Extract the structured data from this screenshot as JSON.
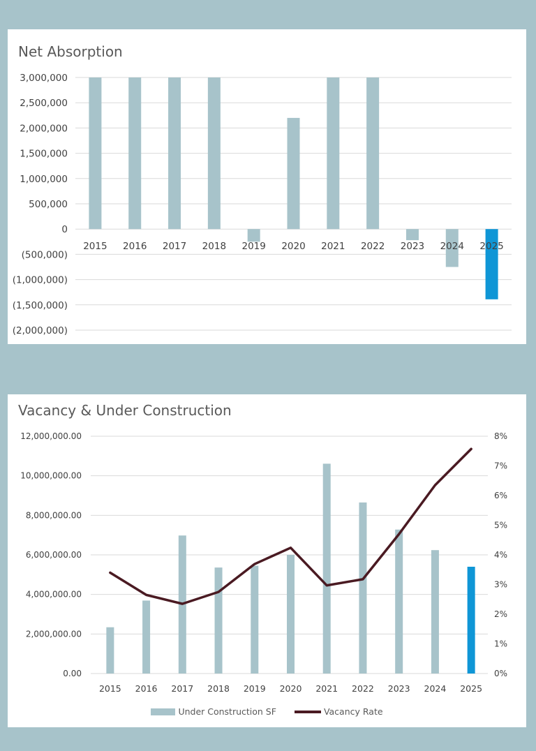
{
  "colors": {
    "background": "#a7c3ca",
    "bar": "#a7c3ca",
    "highlight_bar": "#0f96d6",
    "line": "#4a1a22",
    "grid": "#d9d9d9"
  },
  "chart_data": [
    {
      "type": "bar",
      "title": "Net Absorption",
      "categories": [
        "2015",
        "2016",
        "2017",
        "2018",
        "2019",
        "2020",
        "2021",
        "2022",
        "2023",
        "2024",
        "2025"
      ],
      "values": [
        3000000,
        3000000,
        3000000,
        3000000,
        -250000,
        2200000,
        3000000,
        3000000,
        -220000,
        -750000,
        -1390000
      ],
      "highlight_index": 10,
      "ylim": [
        -2000000,
        3000000
      ],
      "yticks": [
        3000000,
        2500000,
        2000000,
        1500000,
        1000000,
        500000,
        0,
        -500000,
        -1000000,
        -1500000,
        -2000000
      ],
      "ytick_labels": [
        "3,000,000",
        "2,500,000",
        "2,000,000",
        "1,500,000",
        "1,000,000",
        "500,000",
        "0",
        "(500,000)",
        "(1,000,000)",
        "(1,500,000)",
        "(2,000,000)"
      ],
      "grid": true,
      "xlabel": "",
      "ylabel": ""
    },
    {
      "type": "bar+line",
      "title": "Vacancy & Under Construction",
      "categories": [
        "2015",
        "2016",
        "2017",
        "2018",
        "2019",
        "2020",
        "2021",
        "2022",
        "2023",
        "2024",
        "2025"
      ],
      "series": [
        {
          "name": "Under Construction SF",
          "type": "bar",
          "axis": "left",
          "values": [
            2340000,
            3690000,
            6980000,
            5360000,
            5450000,
            6000000,
            10610000,
            8650000,
            7280000,
            6240000,
            5400000
          ]
        },
        {
          "name": "Vacancy Rate",
          "type": "line",
          "axis": "right",
          "values": [
            3.4,
            2.65,
            2.35,
            2.75,
            3.69,
            4.24,
            2.97,
            3.18,
            4.7,
            6.35,
            7.57
          ]
        }
      ],
      "highlight_index": 10,
      "ylim": [
        0,
        12000000
      ],
      "yticks": [
        0,
        2000000,
        4000000,
        6000000,
        8000000,
        10000000,
        12000000
      ],
      "ytick_labels": [
        "0.00",
        "2,000,000.00",
        "4,000,000.00",
        "6,000,000.00",
        "8,000,000.00",
        "10,000,000.00",
        "12,000,000.00"
      ],
      "y2lim": [
        0,
        8
      ],
      "y2ticks": [
        0,
        1,
        2,
        3,
        4,
        5,
        6,
        7,
        8
      ],
      "y2tick_labels": [
        "0%",
        "1%",
        "2%",
        "3%",
        "4%",
        "5%",
        "6%",
        "7%",
        "8%"
      ],
      "legend_position": "bottom",
      "grid": true
    }
  ]
}
